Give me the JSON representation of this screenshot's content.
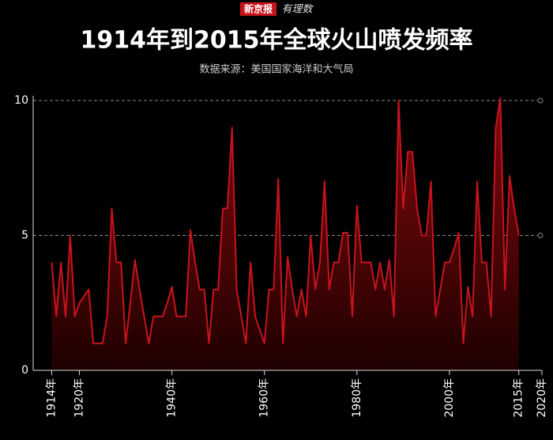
{
  "logo": {
    "brand": "新京报",
    "column": "有理数"
  },
  "chart_data": {
    "type": "area",
    "title": "1914年到2015年全球火山喷发频率",
    "subtitle": "数据来源：美国国家海洋和大气局",
    "x": [
      1914,
      1915,
      1916,
      1917,
      1918,
      1919,
      1920,
      1921,
      1922,
      1923,
      1924,
      1925,
      1926,
      1927,
      1928,
      1929,
      1930,
      1931,
      1932,
      1933,
      1934,
      1935,
      1936,
      1937,
      1938,
      1939,
      1940,
      1941,
      1942,
      1943,
      1944,
      1945,
      1946,
      1947,
      1948,
      1949,
      1950,
      1951,
      1952,
      1953,
      1954,
      1955,
      1956,
      1957,
      1958,
      1959,
      1960,
      1961,
      1962,
      1963,
      1964,
      1965,
      1966,
      1967,
      1968,
      1969,
      1970,
      1971,
      1972,
      1973,
      1974,
      1975,
      1976,
      1977,
      1978,
      1979,
      1980,
      1981,
      1982,
      1983,
      1984,
      1985,
      1986,
      1987,
      1988,
      1989,
      1990,
      1991,
      1992,
      1993,
      1994,
      1995,
      1996,
      1997,
      1998,
      1999,
      2000,
      2001,
      2002,
      2003,
      2004,
      2005,
      2006,
      2007,
      2008,
      2009,
      2010,
      2011,
      2012,
      2013,
      2014,
      2015
    ],
    "values": [
      4,
      2,
      4,
      2,
      5,
      2,
      2.5,
      2.75,
      3,
      1,
      1,
      1,
      2,
      6,
      4,
      4,
      1,
      2.5,
      4.1,
      3,
      2,
      1,
      2,
      2,
      2,
      2.5,
      3.1,
      2,
      2,
      2,
      5.2,
      4,
      3,
      3,
      1,
      3,
      3,
      6,
      6,
      9,
      3,
      2,
      1,
      4,
      2,
      1.5,
      1,
      3,
      3,
      7.1,
      1,
      4.2,
      3,
      2,
      3,
      2,
      5,
      3,
      4,
      7,
      3,
      4,
      4,
      5.1,
      5.1,
      2,
      6.1,
      4,
      4,
      4,
      3,
      4,
      3,
      4.1,
      2,
      10,
      6,
      8.1,
      8.1,
      6,
      5,
      5,
      7,
      2,
      3,
      4,
      4,
      4.5,
      5.1,
      1,
      3.1,
      2,
      7,
      4,
      4,
      2,
      9,
      10.1,
      3,
      7.2,
      6,
      5
    ],
    "color": "#c8141c",
    "xlim": [
      1910,
      2020
    ],
    "xticks": [
      {
        "value": 1914,
        "label": "1914年"
      },
      {
        "value": 1920,
        "label": "1920年"
      },
      {
        "value": 1940,
        "label": "1940年"
      },
      {
        "value": 1960,
        "label": "1960年"
      },
      {
        "value": 1980,
        "label": "1980年"
      },
      {
        "value": 2000,
        "label": "2000年"
      },
      {
        "value": 2015,
        "label": "2015年"
      },
      {
        "value": 2020,
        "label": "2020年"
      }
    ],
    "ylim": [
      0,
      10
    ],
    "yticks": [
      0,
      5,
      10
    ],
    "grid": true
  }
}
